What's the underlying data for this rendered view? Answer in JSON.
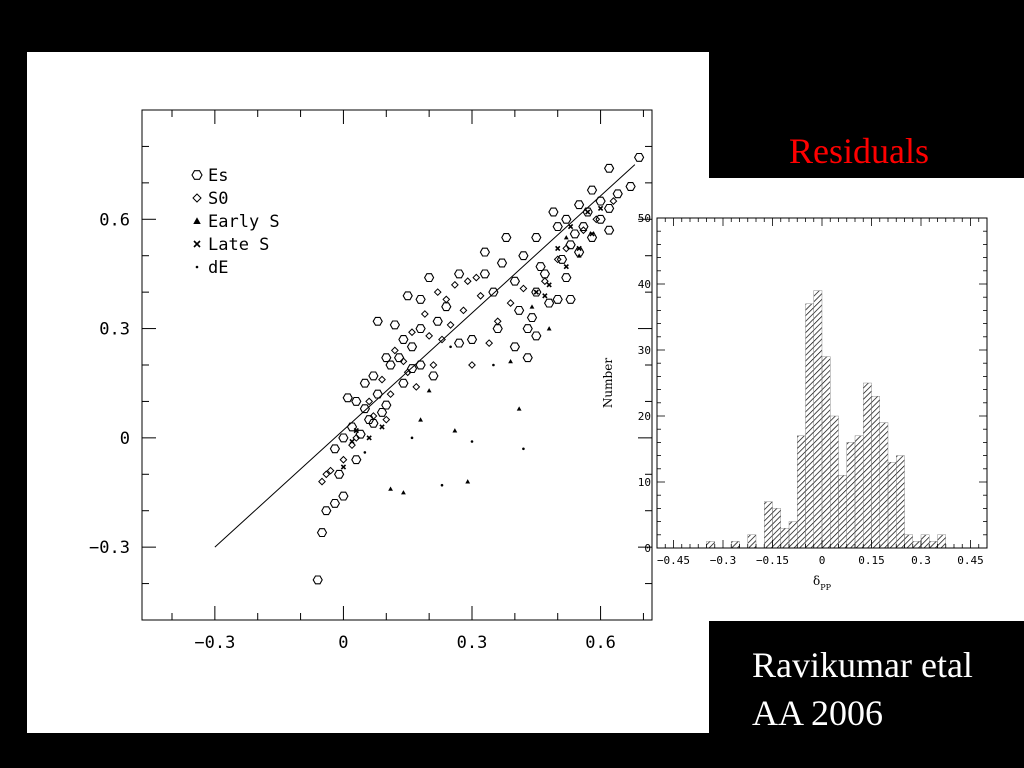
{
  "slide": {
    "title": "Residuals",
    "credit_line1": "Ravikumar etal",
    "credit_line2": "AA 2006",
    "title_color": "#ff0000",
    "text_color": "#ffffff",
    "background": "#000000"
  },
  "chart_data": [
    {
      "type": "scatter",
      "xlim": [
        -0.47,
        0.72
      ],
      "ylim": [
        -0.5,
        0.9
      ],
      "x_ticks": [
        -0.3,
        0,
        0.3,
        0.6
      ],
      "x_tick_labels": [
        "−0.3",
        "0",
        "0.3",
        "0.6"
      ],
      "y_ticks": [
        -0.3,
        0,
        0.3,
        0.6
      ],
      "y_tick_labels": [
        "−0.3",
        "0",
        "0.3",
        "0.6"
      ],
      "xlabel": "",
      "ylabel": "",
      "legend_placement": "top-left",
      "legend": [
        {
          "symbol": "hexagon",
          "label": "Es"
        },
        {
          "symbol": "diamond",
          "label": "S0"
        },
        {
          "symbol": "triangle",
          "label": "Early S"
        },
        {
          "symbol": "cross",
          "label": "Late S"
        },
        {
          "symbol": "dot",
          "label": "dE"
        }
      ],
      "fit_line": [
        [
          -0.3,
          -0.3
        ],
        [
          0.68,
          0.75
        ]
      ],
      "series": [
        {
          "symbol": "hexagon",
          "points": [
            [
              0.69,
              0.77
            ],
            [
              0.62,
              0.74
            ],
            [
              0.67,
              0.69
            ],
            [
              0.58,
              0.68
            ],
            [
              0.64,
              0.67
            ],
            [
              0.6,
              0.65
            ],
            [
              0.55,
              0.64
            ],
            [
              0.57,
              0.62
            ],
            [
              0.62,
              0.63
            ],
            [
              0.49,
              0.62
            ],
            [
              0.6,
              0.6
            ],
            [
              0.52,
              0.6
            ],
            [
              0.56,
              0.58
            ],
            [
              0.58,
              0.55
            ],
            [
              0.54,
              0.56
            ],
            [
              0.62,
              0.57
            ],
            [
              0.5,
              0.58
            ],
            [
              0.53,
              0.53
            ],
            [
              0.55,
              0.51
            ],
            [
              0.51,
              0.49
            ],
            [
              0.45,
              0.55
            ],
            [
              0.38,
              0.55
            ],
            [
              0.33,
              0.51
            ],
            [
              0.37,
              0.48
            ],
            [
              0.33,
              0.45
            ],
            [
              0.42,
              0.5
            ],
            [
              0.46,
              0.47
            ],
            [
              0.47,
              0.45
            ],
            [
              0.45,
              0.4
            ],
            [
              0.48,
              0.37
            ],
            [
              0.4,
              0.43
            ],
            [
              0.35,
              0.4
            ],
            [
              0.43,
              0.3
            ],
            [
              0.53,
              0.38
            ],
            [
              0.52,
              0.44
            ],
            [
              0.36,
              0.3
            ],
            [
              0.3,
              0.27
            ],
            [
              0.27,
              0.26
            ],
            [
              0.2,
              0.44
            ],
            [
              0.15,
              0.39
            ],
            [
              0.18,
              0.38
            ],
            [
              0.24,
              0.36
            ],
            [
              0.22,
              0.32
            ],
            [
              0.18,
              0.3
            ],
            [
              0.14,
              0.27
            ],
            [
              0.16,
              0.25
            ],
            [
              0.12,
              0.31
            ],
            [
              0.08,
              0.32
            ],
            [
              0.13,
              0.22
            ],
            [
              0.11,
              0.2
            ],
            [
              0.07,
              0.17
            ],
            [
              0.05,
              0.15
            ],
            [
              0.08,
              0.12
            ],
            [
              0.03,
              0.1
            ],
            [
              0.01,
              0.11
            ],
            [
              0.05,
              0.08
            ],
            [
              0.06,
              0.05
            ],
            [
              0.09,
              0.07
            ],
            [
              0.02,
              0.03
            ],
            [
              0.04,
              0.01
            ],
            [
              0.0,
              0.0
            ],
            [
              -0.02,
              -0.03
            ],
            [
              0.03,
              -0.06
            ],
            [
              -0.01,
              -0.1
            ],
            [
              0.0,
              -0.16
            ],
            [
              -0.02,
              -0.18
            ],
            [
              -0.04,
              -0.2
            ],
            [
              -0.05,
              -0.26
            ],
            [
              -0.06,
              -0.39
            ],
            [
              0.41,
              0.35
            ],
            [
              0.44,
              0.33
            ],
            [
              0.5,
              0.38
            ],
            [
              0.45,
              0.28
            ],
            [
              0.43,
              0.22
            ],
            [
              0.4,
              0.25
            ],
            [
              0.27,
              0.45
            ],
            [
              0.16,
              0.19
            ],
            [
              0.21,
              0.17
            ],
            [
              0.1,
              0.22
            ],
            [
              0.14,
              0.15
            ],
            [
              0.18,
              0.2
            ],
            [
              0.07,
              0.04
            ],
            [
              0.1,
              0.09
            ]
          ]
        },
        {
          "symbol": "diamond",
          "points": [
            [
              0.24,
              0.38
            ],
            [
              0.22,
              0.4
            ],
            [
              0.26,
              0.42
            ],
            [
              0.29,
              0.43
            ],
            [
              0.31,
              0.44
            ],
            [
              0.28,
              0.35
            ],
            [
              0.32,
              0.39
            ],
            [
              0.25,
              0.31
            ],
            [
              0.19,
              0.34
            ],
            [
              0.2,
              0.28
            ],
            [
              0.23,
              0.27
            ],
            [
              0.16,
              0.29
            ],
            [
              0.12,
              0.24
            ],
            [
              0.14,
              0.21
            ],
            [
              0.17,
              0.14
            ],
            [
              0.11,
              0.12
            ],
            [
              0.09,
              0.16
            ],
            [
              0.06,
              0.1
            ],
            [
              0.07,
              0.06
            ],
            [
              0.03,
              0.0
            ],
            [
              -0.03,
              -0.09
            ],
            [
              -0.05,
              -0.12
            ],
            [
              0.0,
              -0.06
            ],
            [
              0.02,
              -0.02
            ],
            [
              0.36,
              0.32
            ],
            [
              0.39,
              0.37
            ],
            [
              0.42,
              0.41
            ],
            [
              0.47,
              0.43
            ],
            [
              0.5,
              0.49
            ],
            [
              0.52,
              0.52
            ],
            [
              0.56,
              0.57
            ],
            [
              0.59,
              0.6
            ],
            [
              0.63,
              0.65
            ],
            [
              0.3,
              0.2
            ],
            [
              0.34,
              0.26
            ],
            [
              0.21,
              0.2
            ],
            [
              0.15,
              0.18
            ],
            [
              0.1,
              0.05
            ],
            [
              -0.04,
              -0.1
            ]
          ]
        },
        {
          "symbol": "triangle",
          "points": [
            [
              0.11,
              -0.14
            ],
            [
              0.14,
              -0.15
            ],
            [
              0.29,
              -0.12
            ],
            [
              0.41,
              0.08
            ],
            [
              0.39,
              0.21
            ],
            [
              0.18,
              0.05
            ],
            [
              0.2,
              0.13
            ],
            [
              0.26,
              0.02
            ],
            [
              0.44,
              0.36
            ],
            [
              0.52,
              0.55
            ],
            [
              0.55,
              0.5
            ],
            [
              0.48,
              0.3
            ]
          ]
        },
        {
          "symbol": "cross",
          "points": [
            [
              0.48,
              0.42
            ],
            [
              0.52,
              0.47
            ],
            [
              0.55,
              0.52
            ],
            [
              0.58,
              0.56
            ],
            [
              0.5,
              0.52
            ],
            [
              0.53,
              0.58
            ],
            [
              0.57,
              0.62
            ],
            [
              0.6,
              0.63
            ],
            [
              0.45,
              0.4
            ],
            [
              0.47,
              0.39
            ],
            [
              0.03,
              0.02
            ],
            [
              0.02,
              -0.01
            ],
            [
              0.0,
              -0.08
            ],
            [
              0.06,
              0.0
            ],
            [
              0.09,
              0.03
            ]
          ]
        },
        {
          "symbol": "dot",
          "points": [
            [
              0.3,
              -0.01
            ],
            [
              0.42,
              -0.03
            ],
            [
              0.23,
              -0.13
            ],
            [
              0.16,
              0.0
            ],
            [
              0.35,
              0.2
            ],
            [
              0.25,
              0.25
            ],
            [
              0.05,
              -0.04
            ]
          ]
        }
      ]
    },
    {
      "type": "bar",
      "xlabel": "δ_PP",
      "ylabel": "Number",
      "xlim": [
        -0.5,
        0.5
      ],
      "ylim": [
        0,
        50
      ],
      "x_ticks": [
        -0.45,
        -0.3,
        -0.15,
        0,
        0.15,
        0.3,
        0.45
      ],
      "x_tick_labels": [
        "−0.45",
        "−0.3",
        "−0.15",
        "0",
        "0.15",
        "0.3",
        "0.45"
      ],
      "y_ticks": [
        0,
        10,
        20,
        30,
        40,
        50
      ],
      "y_tick_labels": [
        "0",
        "10",
        "20",
        "30",
        "40",
        "50"
      ],
      "bin_width": 0.025,
      "bin_left_edges": [
        -0.35,
        -0.325,
        -0.3,
        -0.275,
        -0.25,
        -0.225,
        -0.2,
        -0.175,
        -0.15,
        -0.125,
        -0.1,
        -0.075,
        -0.05,
        -0.025,
        0,
        0.025,
        0.05,
        0.075,
        0.1,
        0.125,
        0.15,
        0.175,
        0.2,
        0.225,
        0.25,
        0.275,
        0.3,
        0.325,
        0.35,
        0.375
      ],
      "values": [
        1,
        0,
        0,
        1,
        0,
        2,
        0,
        7,
        6,
        3,
        4,
        17,
        37,
        39,
        29,
        20,
        11,
        16,
        17,
        25,
        23,
        19,
        13,
        14,
        2,
        1,
        2,
        1,
        2,
        0
      ]
    }
  ]
}
